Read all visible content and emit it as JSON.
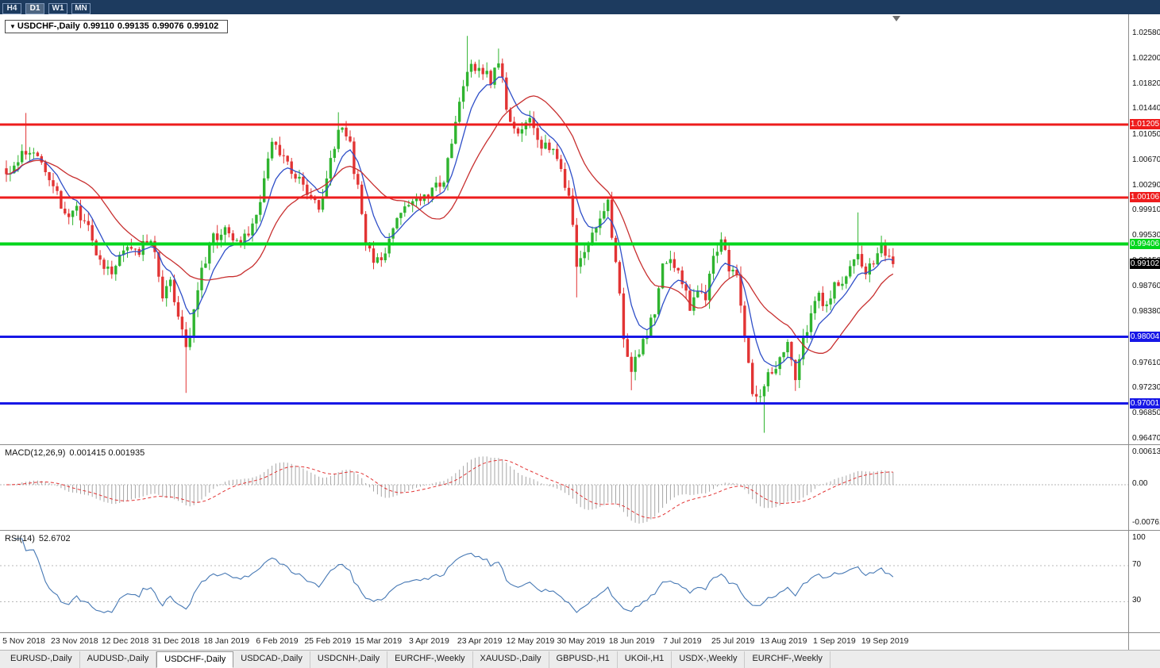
{
  "toolbar": {
    "timeframes": [
      {
        "id": "h4",
        "label": "H4",
        "active": false
      },
      {
        "id": "d1",
        "label": "D1",
        "active": true
      },
      {
        "id": "w1",
        "label": "W1",
        "active": false
      },
      {
        "id": "mn",
        "label": "MN",
        "active": false
      }
    ]
  },
  "icons": {
    "symbol_dropdown": "▼"
  },
  "chart": {
    "title": {
      "symbol": "USDCHF-,Daily",
      "open": "0.99110",
      "high": "0.99135",
      "low": "0.99076",
      "close": "0.99102"
    }
  },
  "chart_data": {
    "type": "candlestick",
    "symbol": "USDCHF",
    "period": "Daily",
    "ohlc_readout": {
      "open": 0.9911,
      "high": 0.99135,
      "low": 0.99076,
      "close": 0.99102
    },
    "y_axis": {
      "max_visible": 1.0258,
      "min_visible": 0.9647,
      "ticks": [
        "1.02580",
        "1.02200",
        "1.01820",
        "1.01440",
        "1.01050",
        "1.00670",
        "1.00290",
        "0.99910",
        "0.99530",
        "0.99150",
        "0.98760",
        "0.98380",
        "0.98000",
        "0.97610",
        "0.97230",
        "0.96850",
        "0.96470"
      ]
    },
    "x_axis": {
      "labels": [
        "5 Nov 2018",
        "23 Nov 2018",
        "12 Dec 2018",
        "31 Dec 2018",
        "18 Jan 2019",
        "6 Feb 2019",
        "25 Feb 2019",
        "15 Mar 2019",
        "3 Apr 2019",
        "23 Apr 2019",
        "12 May 2019",
        "30 May 2019",
        "18 Jun 2019",
        "7 Jul 2019",
        "25 Jul 2019",
        "13 Aug 2019",
        "1 Sep 2019",
        "19 Sep 2019"
      ]
    },
    "levels": [
      {
        "price": 1.01205,
        "label": "1.01205",
        "color": "#ee1c1c",
        "width": 3
      },
      {
        "price": 1.00106,
        "label": "1.00106",
        "color": "#ee1c1c",
        "width": 3
      },
      {
        "price": 0.99406,
        "label": "0.99406",
        "color": "#00d61c",
        "width": 4
      },
      {
        "price": 0.98004,
        "label": "0.98004",
        "color": "#1717e6",
        "width": 3
      },
      {
        "price": 0.97001,
        "label": "0.97001",
        "color": "#1717e6",
        "width": 3
      }
    ],
    "current_price": {
      "value": 0.99102,
      "label": "0.99102",
      "box_color": "#000000"
    },
    "bars_total": 228,
    "close_anchors": [
      [
        0,
        1.004
      ],
      [
        5,
        1.008
      ],
      [
        9,
        1.0068
      ],
      [
        12,
        1.0027
      ],
      [
        15,
        0.9985
      ],
      [
        18,
        0.9991
      ],
      [
        21,
        0.9961
      ],
      [
        24,
        0.9912
      ],
      [
        27,
        0.9896
      ],
      [
        29,
        0.9926
      ],
      [
        31,
        0.9938
      ],
      [
        34,
        0.993
      ],
      [
        37,
        0.9949
      ],
      [
        40,
        0.9866
      ],
      [
        42,
        0.9884
      ],
      [
        44,
        0.983
      ],
      [
        46,
        0.978
      ],
      [
        47,
        0.9806
      ],
      [
        50,
        0.9902
      ],
      [
        53,
        0.9949
      ],
      [
        56,
        0.9961
      ],
      [
        59,
        0.9943
      ],
      [
        62,
        0.9955
      ],
      [
        65,
        1.0009
      ],
      [
        68,
        1.0093
      ],
      [
        72,
        1.0063
      ],
      [
        75,
        1.0033
      ],
      [
        78,
        1.0003
      ],
      [
        80,
        0.9997
      ],
      [
        82,
        1.0039
      ],
      [
        85,
        1.0117
      ],
      [
        88,
        1.0087
      ],
      [
        90,
        1.0021
      ],
      [
        92,
        0.9938
      ],
      [
        94,
        0.9914
      ],
      [
        97,
        0.9926
      ],
      [
        100,
        0.9973
      ],
      [
        103,
        0.9997
      ],
      [
        106,
        1.0009
      ],
      [
        109,
        1.0021
      ],
      [
        112,
        1.0033
      ],
      [
        115,
        1.0129
      ],
      [
        118,
        1.0207
      ],
      [
        121,
        1.0201
      ],
      [
        124,
        1.0189
      ],
      [
        126,
        1.0219
      ],
      [
        129,
        1.0117
      ],
      [
        131,
        1.0099
      ],
      [
        134,
        1.0129
      ],
      [
        137,
        1.0093
      ],
      [
        140,
        1.0087
      ],
      [
        142,
        1.0057
      ],
      [
        144,
        1.0009
      ],
      [
        146,
        0.9914
      ],
      [
        148,
        0.9926
      ],
      [
        151,
        0.9961
      ],
      [
        154,
        1.0
      ],
      [
        156,
        0.9914
      ],
      [
        158,
        0.9806
      ],
      [
        160,
        0.9752
      ],
      [
        162,
        0.9782
      ],
      [
        164,
        0.9806
      ],
      [
        166,
        0.9842
      ],
      [
        168,
        0.992
      ],
      [
        171,
        0.9908
      ],
      [
        173,
        0.9878
      ],
      [
        175,
        0.9848
      ],
      [
        177,
        0.9866
      ],
      [
        179,
        0.986
      ],
      [
        181,
        0.9914
      ],
      [
        183,
        0.9947
      ],
      [
        185,
        0.9902
      ],
      [
        187,
        0.989
      ],
      [
        189,
        0.9806
      ],
      [
        191,
        0.9722
      ],
      [
        192,
        0.9704
      ],
      [
        194,
        0.9734
      ],
      [
        196,
        0.9746
      ],
      [
        198,
        0.9764
      ],
      [
        200,
        0.9794
      ],
      [
        202,
        0.9734
      ],
      [
        204,
        0.9794
      ],
      [
        206,
        0.9836
      ],
      [
        208,
        0.9866
      ],
      [
        210,
        0.9842
      ],
      [
        212,
        0.9878
      ],
      [
        214,
        0.9884
      ],
      [
        216,
        0.9914
      ],
      [
        218,
        0.9926
      ],
      [
        220,
        0.9896
      ],
      [
        222,
        0.9914
      ],
      [
        224,
        0.9938
      ],
      [
        226,
        0.992
      ],
      [
        227,
        0.99102
      ]
    ],
    "wick_overrides": [
      [
        5,
        "high",
        1.0138
      ],
      [
        46,
        "low",
        0.9716
      ],
      [
        85,
        "high",
        1.0139
      ],
      [
        118,
        "high",
        1.0254
      ],
      [
        126,
        "high",
        1.0235
      ],
      [
        146,
        "low",
        0.986
      ],
      [
        154,
        "high",
        1.001
      ],
      [
        160,
        "low",
        0.972
      ],
      [
        194,
        "low",
        0.9656
      ],
      [
        202,
        "low",
        0.9719
      ],
      [
        218,
        "high",
        0.9988
      ],
      [
        224,
        "high",
        0.9953
      ]
    ],
    "indicators": {
      "macd": {
        "label": "MACD(12,26,9)",
        "values_text": "0.001415 0.001935",
        "axis_ticks": [
          {
            "text": "0.00613",
            "value": 0.00613
          },
          {
            "text": "0.00",
            "value": 0
          },
          {
            "text": "-0.00761",
            "value": -0.00761
          }
        ]
      },
      "rsi": {
        "label": "RSI(14)",
        "value_text": "52.6702",
        "levels": [
          30,
          70
        ],
        "axis_ticks": [
          {
            "text": "100",
            "value": 100
          },
          {
            "text": "70",
            "value": 70
          },
          {
            "text": "30",
            "value": 30
          }
        ]
      }
    },
    "colors": {
      "bull": "#2fb42f",
      "bear": "#e23434",
      "ma_fast": "#2f4fc8",
      "ma_slow": "#c83030",
      "macd_hist": "#a6a6a6",
      "macd_signal": "#e23434",
      "rsi_line": "#4678b4"
    }
  },
  "tabs": {
    "items": [
      {
        "label": "EURUSD-,Daily",
        "active": false
      },
      {
        "label": "AUDUSD-,Daily",
        "active": false
      },
      {
        "label": "USDCHF-,Daily",
        "active": true
      },
      {
        "label": "USDCAD-,Daily",
        "active": false
      },
      {
        "label": "USDCNH-,Daily",
        "active": false
      },
      {
        "label": "EURCHF-,Weekly",
        "active": false
      },
      {
        "label": "XAUUSD-,Daily",
        "active": false
      },
      {
        "label": "GBPUSD-,H1",
        "active": false
      },
      {
        "label": "UKOil-,H1",
        "active": false
      },
      {
        "label": "USDX-,Weekly",
        "active": false
      },
      {
        "label": "EURCHF-,Weekly",
        "active": false
      }
    ]
  }
}
